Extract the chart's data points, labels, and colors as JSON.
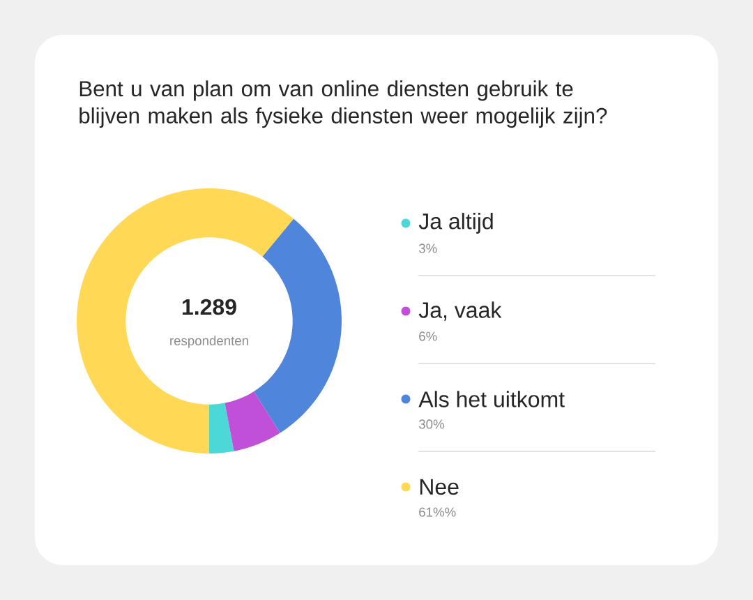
{
  "chart_data": {
    "type": "donut",
    "title": "Bent u van plan om van online diensten gebruik te blijven maken als fysieke diensten weer mogelijk zijn?",
    "categories": [
      "Ja altijd",
      "Ja, vaak",
      "Als het uitkomt",
      "Nee"
    ],
    "values": [
      3,
      6,
      30,
      61
    ],
    "value_labels": [
      "3%",
      "6%",
      "30%",
      "61%%"
    ],
    "colors": [
      "#4dd8d8",
      "#c050d8",
      "#4f86db",
      "#ffd955"
    ],
    "annotations": [
      "1.289",
      "respondenten"
    ],
    "legend": "right"
  }
}
